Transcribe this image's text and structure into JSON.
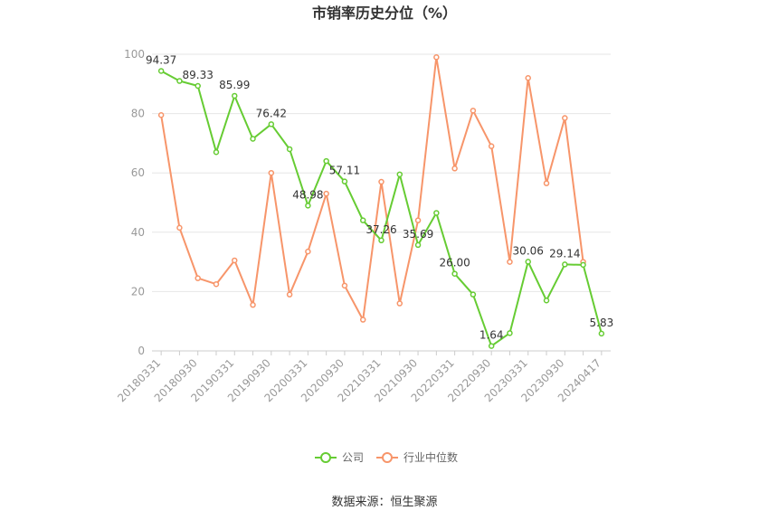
{
  "chart_data": {
    "type": "line",
    "title": "市销率历史分位（%）",
    "xlabel": "",
    "ylabel": "",
    "ylim": [
      0,
      100
    ],
    "yticks": [
      "0",
      "20",
      "40",
      "60",
      "80",
      "100"
    ],
    "x": [
      "20180331",
      "20180630",
      "20180930",
      "20181231",
      "20190331",
      "20190630",
      "20190930",
      "20191231",
      "20200331",
      "20200630",
      "20200930",
      "20201231",
      "20210331",
      "20210630",
      "20210930",
      "20211231",
      "20220331",
      "20220630",
      "20220930",
      "20221231",
      "20230331",
      "20230630",
      "20230930",
      "20231231",
      "20240417"
    ],
    "xtick_labels": [
      "20180331",
      "20180930",
      "20190331",
      "20190930",
      "20200331",
      "20200930",
      "20210331",
      "20210930",
      "20220331",
      "20220930",
      "20230331",
      "20230930",
      "20240417"
    ],
    "series": [
      {
        "name": "公司",
        "color": "#66cc33",
        "values": [
          94.37,
          91.0,
          89.33,
          67.0,
          85.99,
          71.5,
          76.42,
          68.0,
          48.98,
          64.0,
          57.11,
          44.0,
          37.26,
          59.5,
          35.69,
          46.5,
          26.0,
          19.0,
          1.64,
          6.0,
          30.06,
          17.0,
          29.14,
          29.0,
          5.83
        ],
        "labels": {
          "0": "94.37",
          "2": "89.33",
          "4": "85.99",
          "6": "76.42",
          "8": "48.98",
          "10": "57.11",
          "12": "37.26",
          "14": "35.69",
          "16": "26.00",
          "18": "1.64",
          "20": "30.06",
          "22": "29.14",
          "24": "5.83"
        }
      },
      {
        "name": "行业中位数",
        "color": "#f7956a",
        "values": [
          79.5,
          41.5,
          24.5,
          22.5,
          30.5,
          15.5,
          60.0,
          19.0,
          33.5,
          53.0,
          22.0,
          10.5,
          57.0,
          16.0,
          44.0,
          99.0,
          61.5,
          81.0,
          69.0,
          30.0,
          92.0,
          56.5,
          78.5,
          30.0,
          null
        ]
      }
    ],
    "legend_position": "bottom",
    "grid": true,
    "source": "数据来源：恒生聚源"
  }
}
